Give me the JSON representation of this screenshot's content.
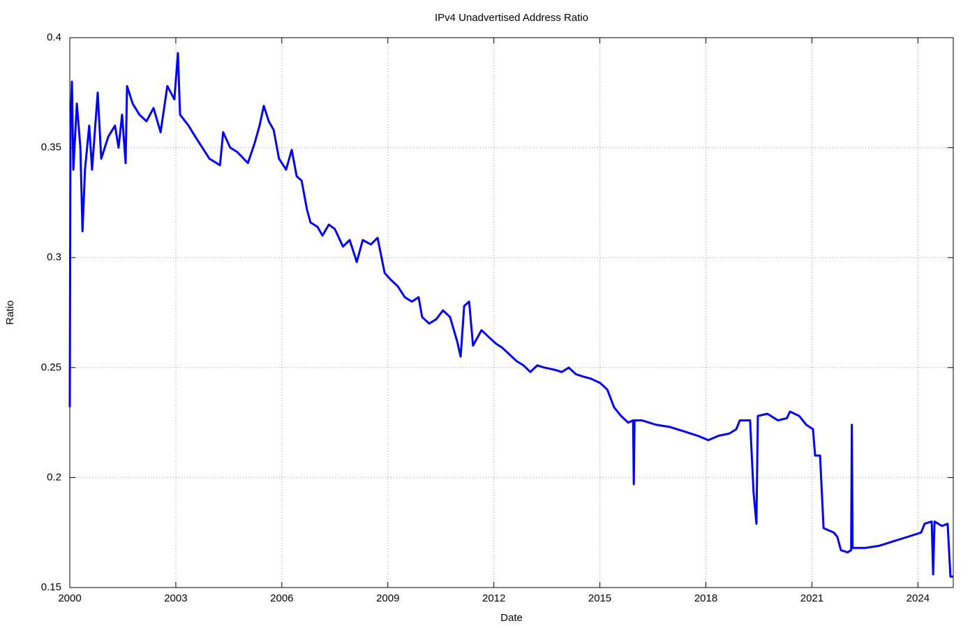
{
  "chart_data": {
    "type": "line",
    "title": "IPv4 Unadvertised Address Ratio",
    "x_label": "Date",
    "y_label": "Ratio",
    "xlim": [
      2000,
      2025
    ],
    "xticks": [
      2000,
      2003,
      2006,
      2009,
      2012,
      2015,
      2018,
      2021,
      2024
    ],
    "ylim": [
      0.15,
      0.4
    ],
    "yticks": [
      0.15,
      0.2,
      0.25,
      0.3,
      0.35,
      0.4
    ],
    "grid": true,
    "series": [
      {
        "color": "#0000ff",
        "x": [
          2000.0,
          2000.02,
          2000.06,
          2000.1,
          2000.2,
          2000.3,
          2000.36,
          2000.43,
          2000.55,
          2000.63,
          2000.79,
          2000.89,
          2001.09,
          2001.28,
          2001.38,
          2001.48,
          2001.58,
          2001.62,
          2001.78,
          2001.97,
          2002.17,
          2002.37,
          2002.57,
          2002.76,
          2002.96,
          2003.06,
          2003.12,
          2003.36,
          2003.55,
          2003.75,
          2003.95,
          2004.25,
          2004.34,
          2004.54,
          2004.74,
          2005.04,
          2005.23,
          2005.37,
          2005.49,
          2005.63,
          2005.77,
          2005.92,
          2006.12,
          2006.28,
          2006.42,
          2006.56,
          2006.71,
          2006.81,
          2007.01,
          2007.15,
          2007.33,
          2007.5,
          2007.73,
          2007.92,
          2008.12,
          2008.29,
          2008.52,
          2008.71,
          2008.91,
          2009.08,
          2009.28,
          2009.48,
          2009.68,
          2009.87,
          2009.97,
          2010.17,
          2010.37,
          2010.56,
          2010.76,
          2010.96,
          2011.06,
          2011.16,
          2011.3,
          2011.41,
          2011.65,
          2011.85,
          2012.05,
          2012.24,
          2012.44,
          2012.64,
          2012.84,
          2013.03,
          2013.23,
          2013.43,
          2013.72,
          2013.92,
          2014.12,
          2014.32,
          2014.51,
          2014.74,
          2015.01,
          2015.21,
          2015.4,
          2015.6,
          2015.8,
          2015.94,
          2015.96,
          2015.98,
          2016.19,
          2016.59,
          2016.98,
          2017.38,
          2017.77,
          2018.07,
          2018.36,
          2018.66,
          2018.86,
          2018.96,
          2019.25,
          2019.35,
          2019.43,
          2019.47,
          2019.74,
          2020.04,
          2020.29,
          2020.38,
          2020.64,
          2020.84,
          2021.03,
          2021.09,
          2021.23,
          2021.33,
          2021.62,
          2021.72,
          2021.82,
          2022.01,
          2022.11,
          2022.13,
          2022.15,
          2022.51,
          2022.91,
          2023.3,
          2023.7,
          2024.09,
          2024.19,
          2024.39,
          2024.43,
          2024.47,
          2024.68,
          2024.84,
          2024.92,
          2025.0
        ],
        "values": [
          0.232,
          0.36,
          0.38,
          0.34,
          0.37,
          0.35,
          0.312,
          0.34,
          0.36,
          0.34,
          0.375,
          0.345,
          0.355,
          0.36,
          0.35,
          0.365,
          0.343,
          0.378,
          0.37,
          0.365,
          0.362,
          0.368,
          0.357,
          0.378,
          0.372,
          0.393,
          0.365,
          0.36,
          0.355,
          0.35,
          0.345,
          0.342,
          0.357,
          0.35,
          0.348,
          0.343,
          0.352,
          0.36,
          0.369,
          0.362,
          0.358,
          0.345,
          0.34,
          0.349,
          0.337,
          0.335,
          0.322,
          0.316,
          0.314,
          0.31,
          0.315,
          0.313,
          0.305,
          0.308,
          0.298,
          0.308,
          0.306,
          0.309,
          0.293,
          0.29,
          0.287,
          0.282,
          0.28,
          0.282,
          0.273,
          0.27,
          0.272,
          0.276,
          0.273,
          0.262,
          0.255,
          0.278,
          0.28,
          0.26,
          0.267,
          0.264,
          0.261,
          0.259,
          0.256,
          0.253,
          0.251,
          0.248,
          0.251,
          0.25,
          0.249,
          0.248,
          0.25,
          0.247,
          0.246,
          0.245,
          0.243,
          0.24,
          0.232,
          0.228,
          0.225,
          0.226,
          0.197,
          0.226,
          0.226,
          0.224,
          0.223,
          0.221,
          0.219,
          0.217,
          0.219,
          0.22,
          0.222,
          0.226,
          0.226,
          0.193,
          0.179,
          0.228,
          0.229,
          0.226,
          0.227,
          0.23,
          0.228,
          0.224,
          0.222,
          0.21,
          0.21,
          0.177,
          0.175,
          0.173,
          0.167,
          0.166,
          0.167,
          0.224,
          0.168,
          0.168,
          0.169,
          0.171,
          0.173,
          0.175,
          0.179,
          0.18,
          0.156,
          0.18,
          0.178,
          0.179,
          0.155,
          0.155
        ]
      }
    ]
  }
}
